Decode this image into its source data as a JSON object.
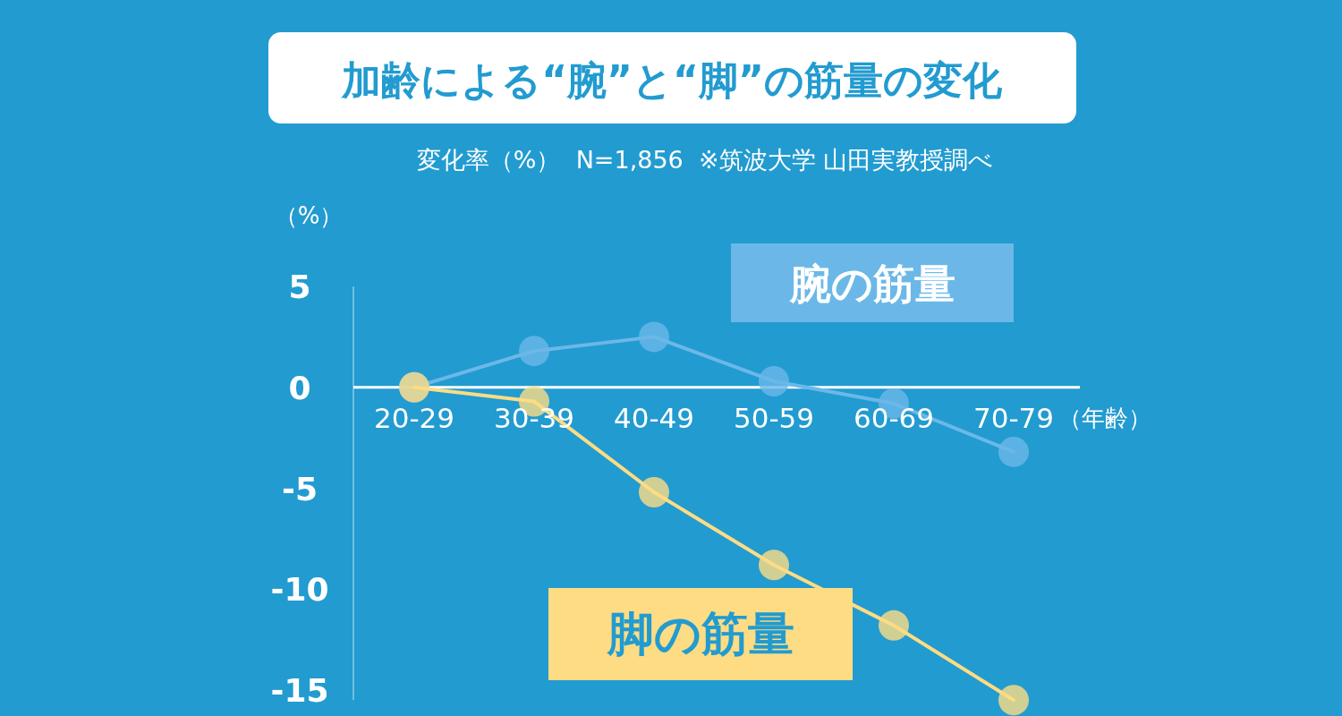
{
  "chart_data": {
    "type": "line",
    "title": "加齢による“腕”と“脚”の筋量の変化",
    "subtitle": "変化率（%）  N=1,856  ※筑波大学 山田実教授調べ",
    "ylabel": "（%）",
    "xlabel": "（年齢）",
    "categories": [
      "20-29",
      "30-39",
      "40-49",
      "50-59",
      "60-69",
      "70-79"
    ],
    "series": [
      {
        "name": "腕の筋量",
        "color": "#6bb8e8",
        "values": [
          0,
          1.8,
          2.5,
          0.3,
          -0.8,
          -3.2
        ]
      },
      {
        "name": "脚の筋量",
        "color": "#fddc84",
        "values": [
          0,
          -0.7,
          -5.2,
          -8.8,
          -11.8,
          -15.5
        ]
      }
    ],
    "ylim": [
      -15.5,
      5
    ],
    "yticks": [
      5,
      0,
      -5,
      -10,
      -15
    ],
    "marker": "circle",
    "line_style": "solid"
  }
}
